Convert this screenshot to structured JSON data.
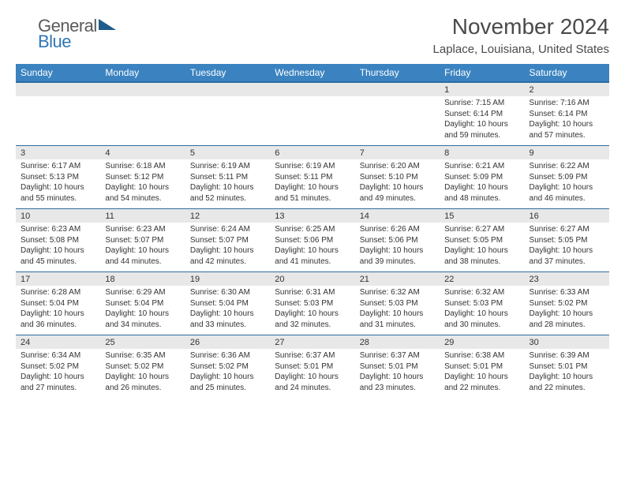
{
  "logo": {
    "text1": "General",
    "text2": "Blue",
    "color_gray": "#5a5a5a",
    "color_blue": "#2f75b5",
    "tri_color": "#1f5c8b"
  },
  "header": {
    "month_title": "November 2024",
    "location": "Laplace, Louisiana, United States"
  },
  "colors": {
    "header_bg": "#3b83c0",
    "header_border": "#2d6da3",
    "row_head_bg": "#e8e8e8",
    "text": "#333333",
    "title_text": "#4a4a4a",
    "white": "#ffffff"
  },
  "typography": {
    "month_title_pt": 28,
    "location_pt": 15,
    "dayhead_pt": 12,
    "daynum_pt": 11,
    "body_pt": 10,
    "logo_pt": 22
  },
  "weekdays": [
    "Sunday",
    "Monday",
    "Tuesday",
    "Wednesday",
    "Thursday",
    "Friday",
    "Saturday"
  ],
  "weeks": [
    [
      {
        "empty": true
      },
      {
        "empty": true
      },
      {
        "empty": true
      },
      {
        "empty": true
      },
      {
        "empty": true
      },
      {
        "n": "1",
        "sr": "Sunrise: 7:15 AM",
        "ss": "Sunset: 6:14 PM",
        "d1": "Daylight: 10 hours",
        "d2": "and 59 minutes."
      },
      {
        "n": "2",
        "sr": "Sunrise: 7:16 AM",
        "ss": "Sunset: 6:14 PM",
        "d1": "Daylight: 10 hours",
        "d2": "and 57 minutes."
      }
    ],
    [
      {
        "n": "3",
        "sr": "Sunrise: 6:17 AM",
        "ss": "Sunset: 5:13 PM",
        "d1": "Daylight: 10 hours",
        "d2": "and 55 minutes."
      },
      {
        "n": "4",
        "sr": "Sunrise: 6:18 AM",
        "ss": "Sunset: 5:12 PM",
        "d1": "Daylight: 10 hours",
        "d2": "and 54 minutes."
      },
      {
        "n": "5",
        "sr": "Sunrise: 6:19 AM",
        "ss": "Sunset: 5:11 PM",
        "d1": "Daylight: 10 hours",
        "d2": "and 52 minutes."
      },
      {
        "n": "6",
        "sr": "Sunrise: 6:19 AM",
        "ss": "Sunset: 5:11 PM",
        "d1": "Daylight: 10 hours",
        "d2": "and 51 minutes."
      },
      {
        "n": "7",
        "sr": "Sunrise: 6:20 AM",
        "ss": "Sunset: 5:10 PM",
        "d1": "Daylight: 10 hours",
        "d2": "and 49 minutes."
      },
      {
        "n": "8",
        "sr": "Sunrise: 6:21 AM",
        "ss": "Sunset: 5:09 PM",
        "d1": "Daylight: 10 hours",
        "d2": "and 48 minutes."
      },
      {
        "n": "9",
        "sr": "Sunrise: 6:22 AM",
        "ss": "Sunset: 5:09 PM",
        "d1": "Daylight: 10 hours",
        "d2": "and 46 minutes."
      }
    ],
    [
      {
        "n": "10",
        "sr": "Sunrise: 6:23 AM",
        "ss": "Sunset: 5:08 PM",
        "d1": "Daylight: 10 hours",
        "d2": "and 45 minutes."
      },
      {
        "n": "11",
        "sr": "Sunrise: 6:23 AM",
        "ss": "Sunset: 5:07 PM",
        "d1": "Daylight: 10 hours",
        "d2": "and 44 minutes."
      },
      {
        "n": "12",
        "sr": "Sunrise: 6:24 AM",
        "ss": "Sunset: 5:07 PM",
        "d1": "Daylight: 10 hours",
        "d2": "and 42 minutes."
      },
      {
        "n": "13",
        "sr": "Sunrise: 6:25 AM",
        "ss": "Sunset: 5:06 PM",
        "d1": "Daylight: 10 hours",
        "d2": "and 41 minutes."
      },
      {
        "n": "14",
        "sr": "Sunrise: 6:26 AM",
        "ss": "Sunset: 5:06 PM",
        "d1": "Daylight: 10 hours",
        "d2": "and 39 minutes."
      },
      {
        "n": "15",
        "sr": "Sunrise: 6:27 AM",
        "ss": "Sunset: 5:05 PM",
        "d1": "Daylight: 10 hours",
        "d2": "and 38 minutes."
      },
      {
        "n": "16",
        "sr": "Sunrise: 6:27 AM",
        "ss": "Sunset: 5:05 PM",
        "d1": "Daylight: 10 hours",
        "d2": "and 37 minutes."
      }
    ],
    [
      {
        "n": "17",
        "sr": "Sunrise: 6:28 AM",
        "ss": "Sunset: 5:04 PM",
        "d1": "Daylight: 10 hours",
        "d2": "and 36 minutes."
      },
      {
        "n": "18",
        "sr": "Sunrise: 6:29 AM",
        "ss": "Sunset: 5:04 PM",
        "d1": "Daylight: 10 hours",
        "d2": "and 34 minutes."
      },
      {
        "n": "19",
        "sr": "Sunrise: 6:30 AM",
        "ss": "Sunset: 5:04 PM",
        "d1": "Daylight: 10 hours",
        "d2": "and 33 minutes."
      },
      {
        "n": "20",
        "sr": "Sunrise: 6:31 AM",
        "ss": "Sunset: 5:03 PM",
        "d1": "Daylight: 10 hours",
        "d2": "and 32 minutes."
      },
      {
        "n": "21",
        "sr": "Sunrise: 6:32 AM",
        "ss": "Sunset: 5:03 PM",
        "d1": "Daylight: 10 hours",
        "d2": "and 31 minutes."
      },
      {
        "n": "22",
        "sr": "Sunrise: 6:32 AM",
        "ss": "Sunset: 5:03 PM",
        "d1": "Daylight: 10 hours",
        "d2": "and 30 minutes."
      },
      {
        "n": "23",
        "sr": "Sunrise: 6:33 AM",
        "ss": "Sunset: 5:02 PM",
        "d1": "Daylight: 10 hours",
        "d2": "and 28 minutes."
      }
    ],
    [
      {
        "n": "24",
        "sr": "Sunrise: 6:34 AM",
        "ss": "Sunset: 5:02 PM",
        "d1": "Daylight: 10 hours",
        "d2": "and 27 minutes."
      },
      {
        "n": "25",
        "sr": "Sunrise: 6:35 AM",
        "ss": "Sunset: 5:02 PM",
        "d1": "Daylight: 10 hours",
        "d2": "and 26 minutes."
      },
      {
        "n": "26",
        "sr": "Sunrise: 6:36 AM",
        "ss": "Sunset: 5:02 PM",
        "d1": "Daylight: 10 hours",
        "d2": "and 25 minutes."
      },
      {
        "n": "27",
        "sr": "Sunrise: 6:37 AM",
        "ss": "Sunset: 5:01 PM",
        "d1": "Daylight: 10 hours",
        "d2": "and 24 minutes."
      },
      {
        "n": "28",
        "sr": "Sunrise: 6:37 AM",
        "ss": "Sunset: 5:01 PM",
        "d1": "Daylight: 10 hours",
        "d2": "and 23 minutes."
      },
      {
        "n": "29",
        "sr": "Sunrise: 6:38 AM",
        "ss": "Sunset: 5:01 PM",
        "d1": "Daylight: 10 hours",
        "d2": "and 22 minutes."
      },
      {
        "n": "30",
        "sr": "Sunrise: 6:39 AM",
        "ss": "Sunset: 5:01 PM",
        "d1": "Daylight: 10 hours",
        "d2": "and 22 minutes."
      }
    ]
  ]
}
